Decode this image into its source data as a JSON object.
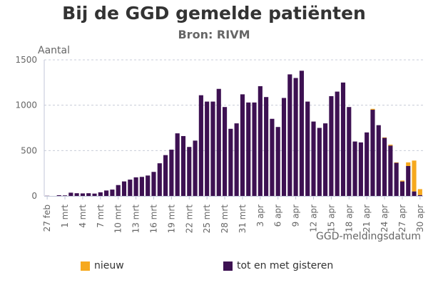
{
  "chart_data": {
    "type": "bar",
    "stacked": true,
    "title": "Bij de GGD gemelde patiënten",
    "subtitle": "Bron: RIVM",
    "ylabel": "Aantal",
    "xlabel": "GGD-meldingsdatum",
    "ylim": [
      0,
      1500
    ],
    "yticks": [
      "0",
      "500",
      "1000",
      "1500"
    ],
    "grid": true,
    "legend_position": "bottom",
    "categories": [
      "27 feb",
      "28 feb",
      "29 feb",
      "1 mrt",
      "2 mrt",
      "3 mrt",
      "4 mrt",
      "5 mrt",
      "6 mrt",
      "7 mrt",
      "8 mrt",
      "9 mrt",
      "10 mrt",
      "11 mrt",
      "12 mrt",
      "13 mrt",
      "14 mrt",
      "15 mrt",
      "16 mrt",
      "17 mrt",
      "18 mrt",
      "19 mrt",
      "20 mrt",
      "21 mrt",
      "22 mrt",
      "23 mrt",
      "24 mrt",
      "25 mrt",
      "26 mrt",
      "27 mrt",
      "28 mrt",
      "29 mrt",
      "30 mrt",
      "31 mrt",
      "1 apr",
      "2 apr",
      "3 apr",
      "4 apr",
      "5 apr",
      "6 apr",
      "7 apr",
      "8 apr",
      "9 apr",
      "10 apr",
      "11 apr",
      "12 apr",
      "13 apr",
      "14 apr",
      "15 apr",
      "16 apr",
      "17 apr",
      "18 apr",
      "19 apr",
      "20 apr",
      "21 apr",
      "22 apr",
      "23 apr",
      "24 apr",
      "25 apr",
      "26 apr",
      "27 apr",
      "28 apr",
      "29 apr",
      "30 apr"
    ],
    "xtick_labels": [
      "27 feb",
      "1 mrt",
      "4 mrt",
      "7 mrt",
      "10 mrt",
      "13 mrt",
      "16 mrt",
      "19 mrt",
      "22 mrt",
      "25 mrt",
      "28 mrt",
      "31 mrt",
      "3 apr",
      "6 apr",
      "9 apr",
      "12 apr",
      "15 apr",
      "18 apr",
      "21 apr",
      "24 apr",
      "27 apr",
      "30 apr"
    ],
    "series": [
      {
        "name": "tot en met gisteren",
        "color": "#3d1152",
        "values": [
          2,
          0,
          8,
          6,
          36,
          30,
          28,
          30,
          26,
          40,
          60,
          70,
          120,
          160,
          180,
          205,
          210,
          225,
          265,
          360,
          450,
          510,
          690,
          660,
          540,
          610,
          1110,
          1040,
          1040,
          1180,
          980,
          740,
          800,
          1120,
          1030,
          1030,
          1210,
          1090,
          850,
          760,
          1080,
          1340,
          1300,
          1380,
          1040,
          820,
          750,
          800,
          1100,
          1150,
          1250,
          980,
          600,
          590,
          700,
          950,
          780,
          640,
          555,
          365,
          160,
          330,
          50,
          10
        ]
      },
      {
        "name": "nieuw",
        "color": "#f6a91e",
        "values": [
          0,
          0,
          0,
          0,
          0,
          0,
          0,
          0,
          0,
          0,
          0,
          0,
          0,
          0,
          0,
          0,
          0,
          0,
          0,
          0,
          0,
          0,
          0,
          0,
          0,
          0,
          0,
          0,
          0,
          0,
          0,
          0,
          0,
          0,
          0,
          0,
          0,
          0,
          0,
          0,
          0,
          0,
          0,
          0,
          0,
          0,
          0,
          0,
          0,
          0,
          0,
          0,
          0,
          0,
          0,
          10,
          0,
          5,
          10,
          5,
          10,
          40,
          340,
          65
        ]
      }
    ]
  },
  "legend": [
    {
      "label": "nieuw",
      "color": "#f6a91e",
      "icon": "yellow-square-icon"
    },
    {
      "label": "tot en met gisteren",
      "color": "#3d1152",
      "icon": "purple-square-icon"
    }
  ]
}
